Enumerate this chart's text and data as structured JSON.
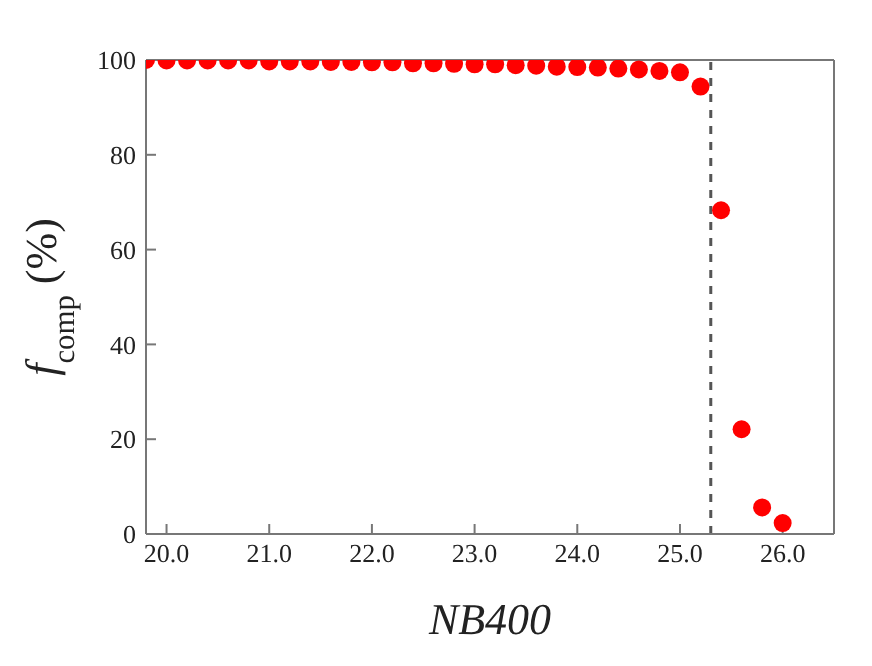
{
  "chart_data": {
    "type": "scatter",
    "xlabel": "NB400",
    "ylabel": "f$_{comp}$ (%)",
    "x": [
      19.8,
      20.0,
      20.2,
      20.4,
      20.6,
      20.8,
      21.0,
      21.2,
      21.4,
      21.6,
      21.8,
      22.0,
      22.2,
      22.4,
      22.6,
      22.8,
      23.0,
      23.2,
      23.4,
      23.6,
      23.8,
      24.0,
      24.2,
      24.4,
      24.6,
      24.8,
      25.0,
      25.2,
      25.4,
      25.6,
      25.8,
      26.0
    ],
    "series": [
      {
        "color": "#ff0000",
        "values": [
          100,
          99.9,
          99.9,
          99.9,
          99.9,
          99.9,
          99.7,
          99.7,
          99.7,
          99.6,
          99.6,
          99.5,
          99.5,
          99.3,
          99.3,
          99.2,
          99.1,
          99.1,
          98.9,
          98.8,
          98.6,
          98.5,
          98.4,
          98.2,
          98.0,
          97.7,
          97.4,
          94.4,
          68.3,
          22.1,
          5.6,
          2.3
        ]
      }
    ],
    "xlim": [
      19.8,
      26.5
    ],
    "xticks": [
      {
        "value": 20,
        "label": "20.0"
      },
      {
        "value": 21,
        "label": "21.0"
      },
      {
        "value": 22,
        "label": "22.0"
      },
      {
        "value": 23,
        "label": "23.0"
      },
      {
        "value": 24,
        "label": "24.0"
      },
      {
        "value": 25,
        "label": "25.0"
      },
      {
        "value": 26,
        "label": "26.0"
      }
    ],
    "ylim": [
      0,
      100
    ],
    "yticks": [
      0,
      20,
      40,
      60,
      80,
      100
    ],
    "ref_lines": [
      {
        "axis": "x",
        "value": 25.3,
        "color": "#555555",
        "line_style": "dashed"
      }
    ],
    "marker": "circle"
  }
}
